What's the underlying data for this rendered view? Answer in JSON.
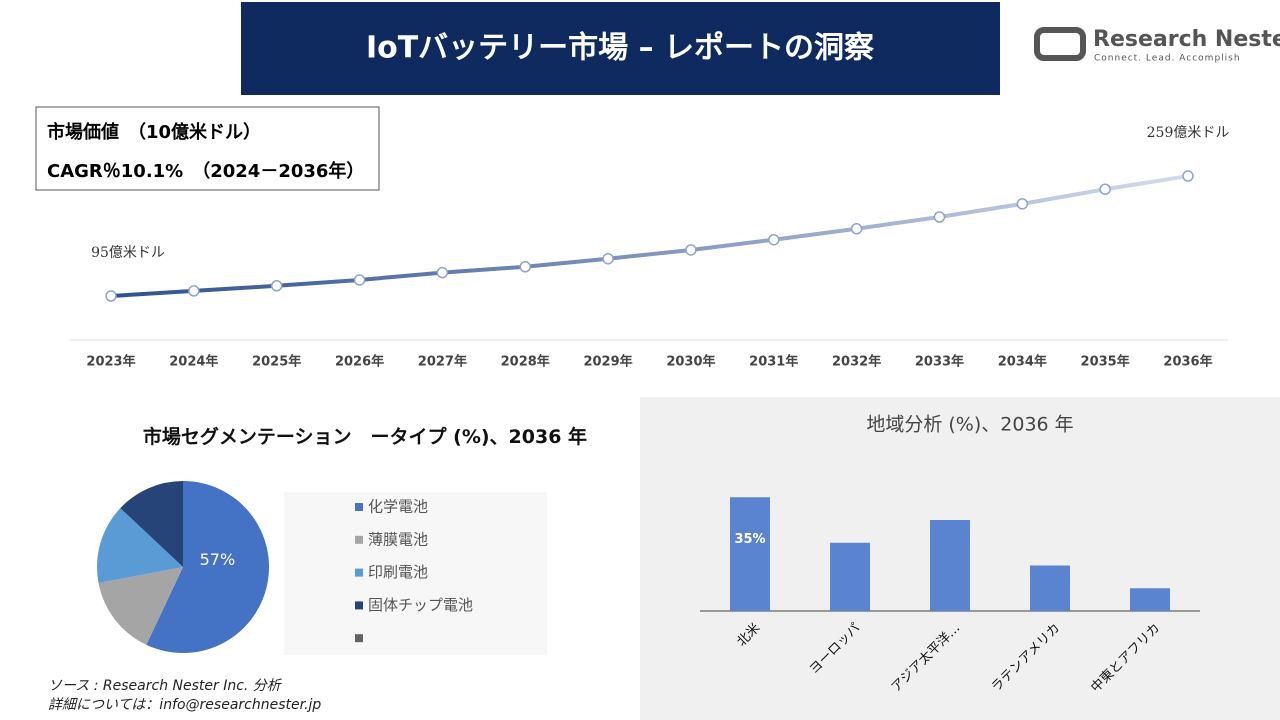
{
  "header": {
    "title": "IoTバッテリー市場 – レポートの洞察",
    "logo_name": "Research Nester",
    "logo_tagline": "Connect. Lead. Accomplish"
  },
  "info_box": {
    "line1": "市場価値　（10億米ドル）",
    "line2": "CAGR％10.1%　（2024－2036年）"
  },
  "chart_data": [
    {
      "type": "line",
      "categories": [
        "2023年",
        "2024年",
        "2025年",
        "2026年",
        "2027年",
        "2028年",
        "2029年",
        "2030年",
        "2031年",
        "2032年",
        "2033年",
        "2034年",
        "2035年",
        "2036年"
      ],
      "values": [
        95,
        102,
        109,
        117,
        127,
        135,
        146,
        158,
        172,
        187,
        203,
        221,
        241,
        259
      ],
      "value_labels": [
        "95億米ドル",
        null,
        null,
        null,
        null,
        null,
        null,
        null,
        null,
        null,
        null,
        null,
        null,
        "259億米ドル"
      ],
      "ylim": [
        30,
        340
      ],
      "color_start": "#2f4f8f",
      "color_end": "#d3dbee"
    },
    {
      "type": "pie",
      "title": "市場セグメンテーション　ータイプ (%)、2036 年",
      "categories": [
        "化学電池",
        "薄膜電池",
        "印刷電池",
        "固体チップ電池",
        null
      ],
      "values": [
        57,
        15,
        15,
        13,
        null
      ],
      "value_labels": [
        "57%",
        null,
        null,
        null,
        null
      ],
      "colors": [
        "#4472c4",
        "#a5a5a5",
        "#5b9bd5",
        "#264478",
        "#636363"
      ]
    },
    {
      "type": "bar",
      "title": "地域分析 (%)、2036 年",
      "categories": [
        "北米",
        "ヨーロッパ",
        "アジア太平洋…",
        "ラテンアメリカ",
        "中東とアフリカ"
      ],
      "values": [
        35,
        21,
        28,
        14,
        7
      ],
      "value_labels": [
        "35%",
        null,
        null,
        null,
        null
      ],
      "ylim": [
        0,
        40
      ],
      "color": "#5b84d0"
    }
  ],
  "source": {
    "line1": "ソース : Research Nester Inc. 分析",
    "line2": "詳細については：info@researchnester.jp"
  }
}
